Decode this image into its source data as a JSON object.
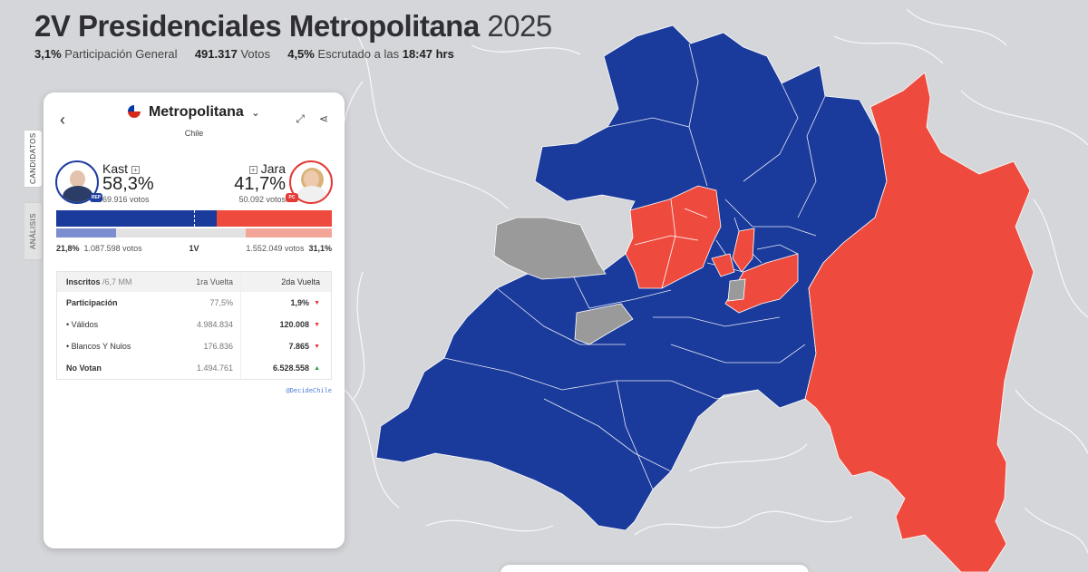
{
  "header": {
    "title": "2V Presidenciales Metropolitana",
    "year": "2025",
    "participation_value": "3,1%",
    "participation_label": "Participación General",
    "votes_value": "491.317",
    "votes_label": "Votos",
    "scrutiny_value": "4,5%",
    "scrutiny_label": "Escrutado a las",
    "scrutiny_time": "18:47 hrs"
  },
  "side_tabs": {
    "candidates": "CANDIDATOS",
    "analysis": "ANÁLISIS"
  },
  "panel": {
    "region": "Metropolitana",
    "country": "Chile",
    "candidate_left": {
      "name": "Kast",
      "pct": "58,3%",
      "votes": "69.916 votos",
      "party": "REP",
      "share": 58.3
    },
    "candidate_right": {
      "name": "Jara",
      "pct": "41,7%",
      "votes": "50.092 votos",
      "party": "PC",
      "share": 41.7
    },
    "first_round": {
      "left_pct": "21,8%",
      "left_votes": "1.087.598 votos",
      "label": "1V",
      "right_votes": "1.552.049 votos",
      "right_pct": "31,1%",
      "left_share": 21.8,
      "right_share": 31.1
    },
    "table": {
      "headers": {
        "col0": "Inscritos",
        "col0_sub": "/6,7 MM",
        "col1": "1ra Vuelta",
        "col2": "2da Vuelta"
      },
      "rows": [
        {
          "label": "Participación",
          "v1": "77,5%",
          "v2": "1,9%",
          "trend": "▼"
        },
        {
          "label": "•  Válidos",
          "v1": "4.984.834",
          "v2": "120.008",
          "trend": "▼"
        },
        {
          "label": "•  Blancos Y Nulos",
          "v1": "176.836",
          "v2": "7.865",
          "trend": "▼"
        },
        {
          "label": "No Votan",
          "v1": "1.494.761",
          "v2": "6.528.558",
          "trend": "▲"
        }
      ]
    },
    "credit": "@DecideChile"
  },
  "colors": {
    "kast": "#1a3a9c",
    "jara": "#ee4b3e",
    "no_data": "#9a9a9a",
    "background": "#d4d6d9"
  }
}
